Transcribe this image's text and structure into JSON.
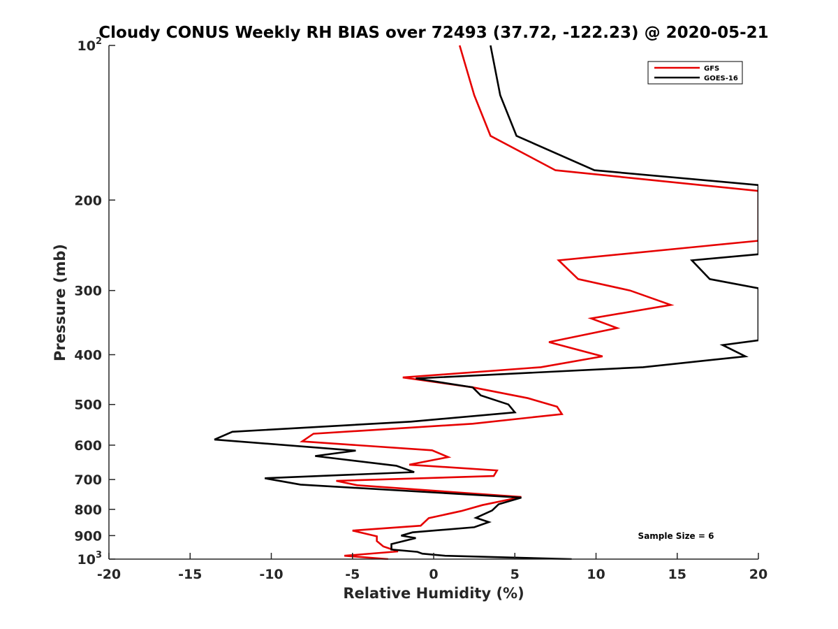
{
  "chart_data": {
    "type": "line",
    "title": "Cloudy CONUS Weekly RH BIAS over 72493 (37.72, -122.23) @ 2020-05-21",
    "xlabel": "Relative Humidity (%)",
    "ylabel": "Pressure (mb)",
    "xlim": [
      -20,
      20
    ],
    "ylim": [
      100,
      1000
    ],
    "y_scale": "log",
    "y_reversed": true,
    "x_ticks": [
      -20,
      -15,
      -10,
      -5,
      0,
      5,
      10,
      15,
      20
    ],
    "x_tick_labels": [
      "-20",
      "-15",
      "-10",
      "-5",
      "0",
      "5",
      "10",
      "15",
      "20"
    ],
    "y_ticks": [
      100,
      200,
      300,
      400,
      500,
      600,
      700,
      800,
      900,
      1000
    ],
    "y_tick_labels": [
      {
        "base": "10",
        "exp": "2"
      },
      {
        "base": "200",
        "exp": ""
      },
      {
        "base": "300",
        "exp": ""
      },
      {
        "base": "400",
        "exp": ""
      },
      {
        "base": "500",
        "exp": ""
      },
      {
        "base": "600",
        "exp": ""
      },
      {
        "base": "700",
        "exp": ""
      },
      {
        "base": "800",
        "exp": ""
      },
      {
        "base": "900",
        "exp": ""
      },
      {
        "base": "10",
        "exp": "3"
      }
    ],
    "grid": false,
    "legend_position": "top-right",
    "annotation": "Sample Size = 6",
    "series": [
      {
        "name": "GFS",
        "color": "#e60000",
        "points": [
          [
            1.6,
            100
          ],
          [
            2.5,
            125
          ],
          [
            3.5,
            150
          ],
          [
            7.5,
            175
          ],
          [
            20,
            192
          ],
          [
            20,
            240
          ],
          [
            7.7,
            262
          ],
          [
            8.9,
            285
          ],
          [
            12.1,
            300
          ],
          [
            14.6,
            320
          ],
          [
            9.7,
            340
          ],
          [
            11.3,
            355
          ],
          [
            7.1,
            378
          ],
          [
            10.4,
            403
          ],
          [
            6.6,
            423
          ],
          [
            -1.9,
            443
          ],
          [
            2.4,
            463
          ],
          [
            5.8,
            486
          ],
          [
            7.6,
            505
          ],
          [
            7.9,
            522
          ],
          [
            2.4,
            545
          ],
          [
            -7.4,
            570
          ],
          [
            -8.1,
            590
          ],
          [
            -0.1,
            614
          ],
          [
            0.9,
            633
          ],
          [
            -1.5,
            655
          ],
          [
            3.9,
            672
          ],
          [
            3.7,
            689
          ],
          [
            -6.0,
            704
          ],
          [
            -4.7,
            718
          ],
          [
            5.4,
            757
          ],
          [
            3.0,
            785
          ],
          [
            1.7,
            806
          ],
          [
            -0.3,
            832
          ],
          [
            -0.8,
            861
          ],
          [
            -5.0,
            880
          ],
          [
            -3.5,
            903
          ],
          [
            -3.5,
            922
          ],
          [
            -3.1,
            945
          ],
          [
            -2.2,
            966
          ],
          [
            -5.5,
            985
          ],
          [
            -2.8,
            1000
          ]
        ]
      },
      {
        "name": "GOES-16",
        "color": "#000000",
        "points": [
          [
            3.5,
            100
          ],
          [
            4.1,
            125
          ],
          [
            5.1,
            150
          ],
          [
            9.9,
            175
          ],
          [
            20,
            187
          ],
          [
            20,
            255
          ],
          [
            15.9,
            262
          ],
          [
            17.0,
            285
          ],
          [
            20,
            297
          ],
          [
            20,
            375
          ],
          [
            17.8,
            383
          ],
          [
            19.2,
            403
          ],
          [
            12.9,
            423
          ],
          [
            -1.1,
            445
          ],
          [
            2.4,
            463
          ],
          [
            2.9,
            480
          ],
          [
            4.6,
            500
          ],
          [
            5.0,
            518
          ],
          [
            -1.4,
            540
          ],
          [
            -12.4,
            565
          ],
          [
            -13.5,
            585
          ],
          [
            -4.8,
            615
          ],
          [
            -7.3,
            630
          ],
          [
            -2.3,
            658
          ],
          [
            -1.2,
            677
          ],
          [
            -10.4,
            696
          ],
          [
            -8.2,
            716
          ],
          [
            5.4,
            759
          ],
          [
            4.0,
            782
          ],
          [
            3.6,
            804
          ],
          [
            2.6,
            831
          ],
          [
            3.4,
            847
          ],
          [
            2.5,
            867
          ],
          [
            -1.3,
            887
          ],
          [
            -2.0,
            900
          ],
          [
            -1.1,
            910
          ],
          [
            -2.6,
            935
          ],
          [
            -2.6,
            958
          ],
          [
            -1.0,
            968
          ],
          [
            -0.7,
            976
          ],
          [
            0.7,
            985
          ],
          [
            8.5,
            1000
          ]
        ]
      }
    ]
  }
}
